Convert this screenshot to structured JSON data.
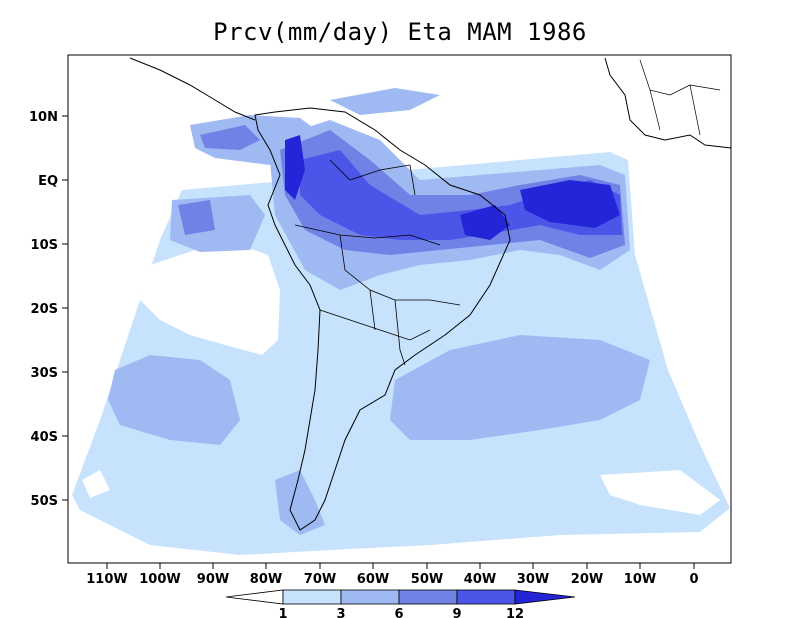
{
  "title": "Prcv(mm/day) Eta MAM 1986",
  "colors": {
    "level_0": "#ffffff",
    "level_1": "#c6e2fc",
    "level_2": "#9fbaf3",
    "level_3": "#7182e6",
    "level_4": "#4b56e8",
    "level_5": "#2424d8",
    "coastline": "#000000"
  },
  "axes": {
    "y_labels": [
      "10N",
      "EQ",
      "10S",
      "20S",
      "30S",
      "40S",
      "50S"
    ],
    "x_labels": [
      "110W",
      "100W",
      "90W",
      "80W",
      "70W",
      "60W",
      "50W",
      "40W",
      "30W",
      "20W",
      "10W",
      "0"
    ]
  },
  "colorbar": {
    "labels": [
      "1",
      "3",
      "6",
      "9",
      "12"
    ]
  }
}
